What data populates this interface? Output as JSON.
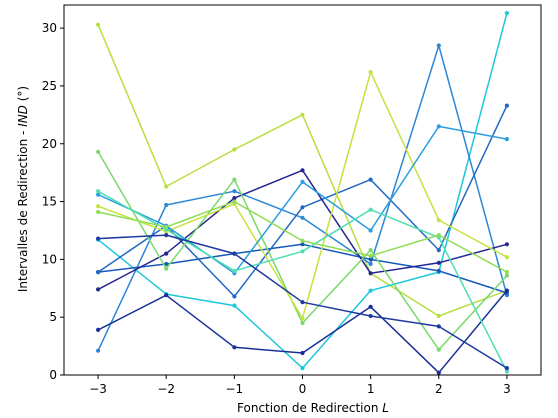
{
  "chart_data": {
    "type": "line",
    "xlabel": "Fonction de Redirection",
    "xlabel_var": "L",
    "ylabel": "Intervalles de Redirection - ",
    "ylabel_var": "IND",
    "ylabel_unit": " (°)",
    "x": [
      -3,
      -2,
      -1,
      0,
      1,
      2,
      3
    ],
    "xlim": [
      -3.5,
      3.5
    ],
    "ylim": [
      0,
      32
    ],
    "xticks": [
      -3,
      -2,
      -1,
      0,
      1,
      2,
      3
    ],
    "xtick_labels": [
      "−3",
      "−2",
      "−1",
      "0",
      "1",
      "2",
      "3"
    ],
    "yticks": [
      0,
      5,
      10,
      15,
      20,
      25,
      30
    ],
    "ytick_labels": [
      "0",
      "5",
      "10",
      "15",
      "20",
      "25",
      "30"
    ],
    "grid": false,
    "legend": "none",
    "series": [
      {
        "color": "#b8df40",
        "values": [
          30.3,
          16.3,
          19.5,
          22.5,
          8.8,
          5.1,
          7.3
        ]
      },
      {
        "color": "#1ec8d8",
        "values": [
          11.7,
          7.0,
          6.0,
          0.6,
          7.3,
          8.9,
          31.3
        ]
      },
      {
        "color": "#2c86d6",
        "values": [
          2.1,
          14.7,
          15.9,
          13.6,
          9.6,
          28.5,
          6.9
        ]
      },
      {
        "color": "#1659b8",
        "values": [
          8.9,
          9.6,
          10.5,
          11.3,
          10.0,
          9.0,
          7.1
        ]
      },
      {
        "color": "#2268c4",
        "values": [
          8.9,
          12.9,
          6.8,
          14.5,
          16.9,
          10.8,
          23.3
        ]
      },
      {
        "color": "#1a2f96",
        "values": [
          3.9,
          6.9,
          2.4,
          1.9,
          5.9,
          0.2,
          7.3
        ]
      },
      {
        "color": "#23278f",
        "values": [
          7.4,
          10.5,
          15.3,
          17.7,
          8.8,
          9.7,
          11.3
        ]
      },
      {
        "color": "#7ad96a",
        "values": [
          19.3,
          9.2,
          16.9,
          4.5,
          10.8,
          2.2,
          8.6
        ]
      },
      {
        "color": "#c6e23f",
        "values": [
          14.6,
          12.4,
          14.8,
          4.9,
          26.2,
          13.4,
          10.2
        ]
      },
      {
        "color": "#2a9ee0",
        "values": [
          15.6,
          12.9,
          8.8,
          16.7,
          12.5,
          21.5,
          20.4
        ]
      },
      {
        "color": "#4fdfb0",
        "values": [
          15.9,
          12.6,
          9.0,
          10.7,
          14.3,
          11.9,
          0.3
        ]
      },
      {
        "color": "#8fdc56",
        "values": [
          14.1,
          12.8,
          15.0,
          11.6,
          10.3,
          12.1,
          8.9
        ]
      },
      {
        "color": "#1c3aa0",
        "values": [
          11.8,
          12.1,
          10.5,
          6.3,
          5.1,
          4.2,
          0.6
        ]
      }
    ]
  }
}
